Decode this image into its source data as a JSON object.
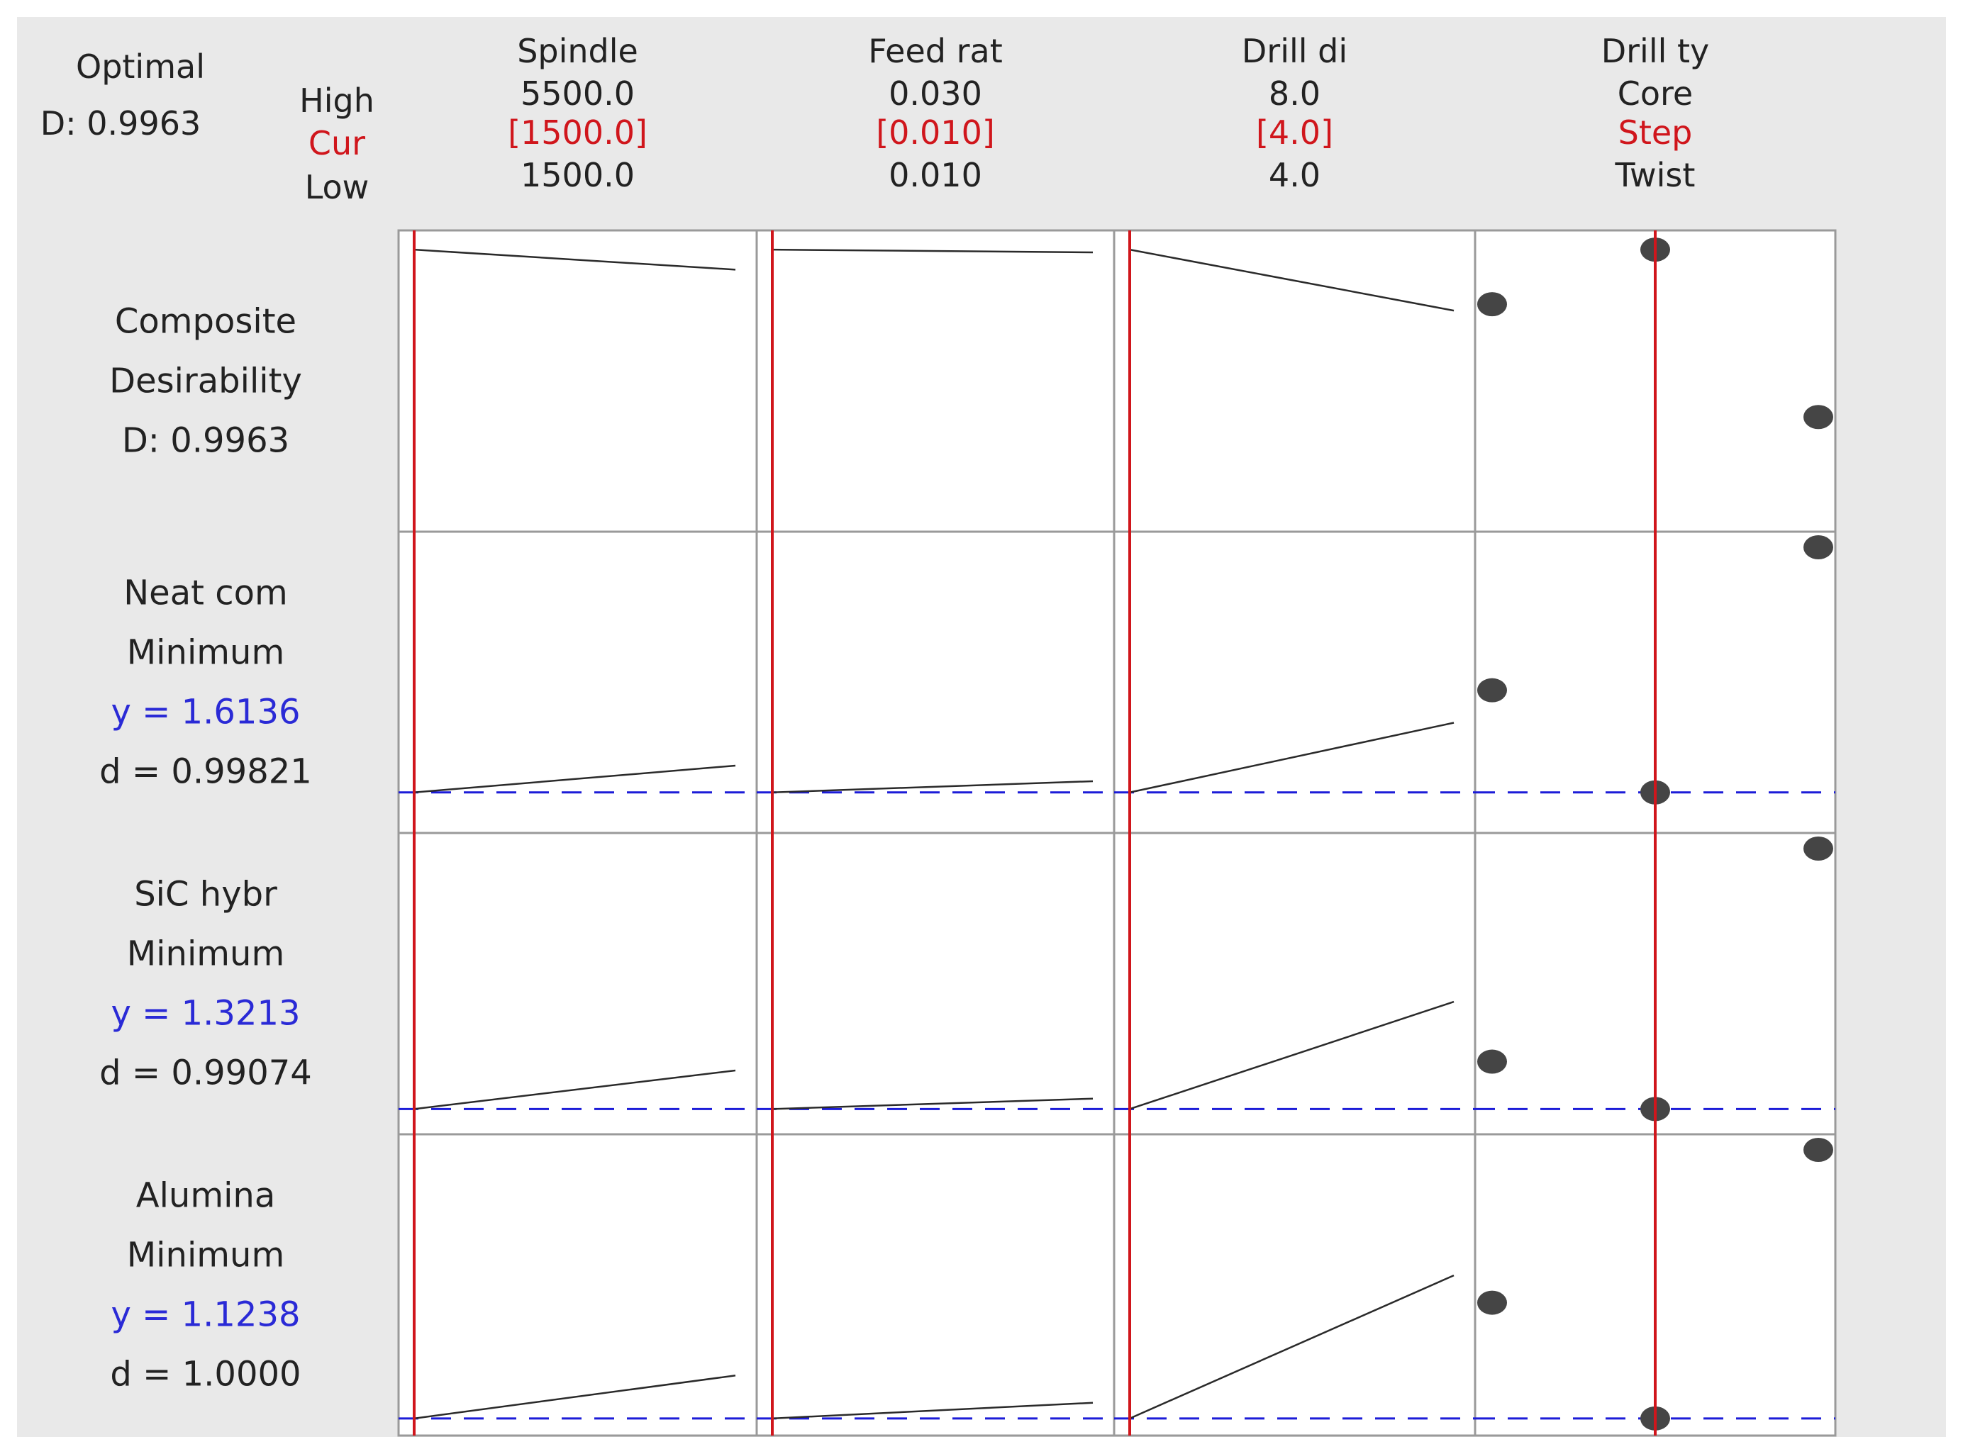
{
  "header": {
    "optimal_label": "Optimal",
    "optimal_d": "D: 0.9963",
    "row_labels": {
      "high": "High",
      "cur": "Cur",
      "low": "Low"
    }
  },
  "colors": {
    "background": "#e9e9e9",
    "panel": "#ffffff",
    "panel_border": "#9a9a9a",
    "current_line": "#d0161c",
    "current_text": "#d0161c",
    "target_line": "#1c1cd8",
    "y_text": "#2a2ad6",
    "curve": "#2a2a2a",
    "point": "#454545",
    "text": "#222222"
  },
  "chart_data": {
    "type": "line",
    "title": "",
    "factors": [
      {
        "name": "Spindle",
        "high": "5500.0",
        "cur": "[1500.0]",
        "low": "1500.0",
        "kind": "continuous",
        "cur_value": 0
      },
      {
        "name": "Feed rat",
        "high": "0.030",
        "cur": "[0.010]",
        "low": "0.010",
        "kind": "continuous",
        "cur_value": 0
      },
      {
        "name": "Drill di",
        "high": "8.0",
        "cur": "[4.0]",
        "low": "4.0",
        "kind": "continuous",
        "cur_value": 0
      },
      {
        "name": "Drill ty",
        "high": "Core",
        "cur": "Step",
        "low": "Twist",
        "kind": "categorical",
        "levels": [
          "Twist",
          "Step",
          "Core"
        ],
        "cur_value": 1
      }
    ],
    "responses": [
      {
        "label1": "Composite",
        "label2": "Desirability",
        "label3": "D: 0.9963",
        "label4": "",
        "goal": "",
        "y_label": "",
        "d_label": "",
        "target_line": false,
        "ylim": [
          0.7,
          1.0
        ],
        "curves": [
          [
            0.996,
            0.974
          ],
          [
            0.996,
            0.993
          ],
          [
            0.996,
            0.929
          ]
        ],
        "points": [
          0.936,
          0.996,
          0.812
        ]
      },
      {
        "label1": "Neat com",
        "label2": "Minimum",
        "label3": "",
        "label4": "",
        "goal": "Minimum",
        "y_label": "y = 1.6136",
        "d_label": "d = 0.99821",
        "target_line": true,
        "ylim": [
          1.4,
          3.5
        ],
        "curves": [
          [
            1.614,
            1.82
          ],
          [
            1.614,
            1.7
          ],
          [
            1.614,
            2.15
          ]
        ],
        "points": [
          2.4,
          1.614,
          3.5
        ]
      },
      {
        "label1": "SiC hybr",
        "label2": "Minimum",
        "label3": "",
        "label4": "",
        "goal": "Minimum",
        "y_label": "y = 1.3213",
        "d_label": "d = 0.99074",
        "target_line": true,
        "ylim": [
          1.25,
          2.8
        ],
        "curves": [
          [
            1.321,
            1.54
          ],
          [
            1.321,
            1.38
          ],
          [
            1.321,
            1.93
          ]
        ],
        "points": [
          1.59,
          1.321,
          2.8
        ]
      },
      {
        "label1": "",
        "label2": "Alumina",
        "label3": "Minimum",
        "label4": "",
        "goal": "Minimum",
        "y_label": "y = 1.1238",
        "d_label": "d = 1.0000",
        "target_line": true,
        "ylim": [
          1.1,
          2.6
        ],
        "curves": [
          [
            1.124,
            1.36
          ],
          [
            1.124,
            1.21
          ],
          [
            1.124,
            1.91
          ]
        ],
        "points": [
          1.76,
          1.124,
          2.6
        ]
      }
    ]
  }
}
